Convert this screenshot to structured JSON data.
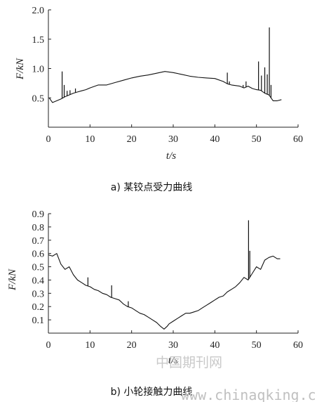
{
  "chart_data": [
    {
      "type": "line",
      "caption": "a) 某铰点受力曲线",
      "xlabel": "t/s",
      "ylabel": "F/kN",
      "xlim": [
        0,
        60
      ],
      "ylim": [
        0,
        2.0
      ],
      "xticks": [
        "0",
        "10",
        "20",
        "30",
        "40",
        "50",
        "60"
      ],
      "yticks": [
        "0.5",
        "1.0",
        "1.5",
        "2.0"
      ],
      "grid": false,
      "series": [
        {
          "x": [
            0.2,
            1,
            2,
            3,
            4,
            5,
            6,
            7,
            8,
            9,
            10,
            12,
            14,
            16,
            18,
            20,
            22,
            24,
            26,
            28,
            30,
            32,
            34,
            36,
            38,
            40,
            42,
            43,
            44,
            46,
            47,
            48,
            49,
            50,
            51,
            52,
            53,
            54,
            55,
            56
          ],
          "y": [
            0.5,
            0.42,
            0.45,
            0.48,
            0.52,
            0.55,
            0.58,
            0.6,
            0.62,
            0.64,
            0.67,
            0.72,
            0.72,
            0.76,
            0.8,
            0.84,
            0.87,
            0.89,
            0.92,
            0.95,
            0.93,
            0.9,
            0.87,
            0.85,
            0.84,
            0.83,
            0.78,
            0.74,
            0.72,
            0.7,
            0.67,
            0.7,
            0.66,
            0.64,
            0.63,
            0.58,
            0.55,
            0.45,
            0.45,
            0.47
          ]
        }
      ],
      "spikes": [
        {
          "x": 3.3,
          "y": 0.95
        },
        {
          "x": 3.8,
          "y": 0.72
        },
        {
          "x": 4.5,
          "y": 0.62
        },
        {
          "x": 5.2,
          "y": 0.63
        },
        {
          "x": 6.5,
          "y": 0.66
        },
        {
          "x": 43.0,
          "y": 0.93
        },
        {
          "x": 43.5,
          "y": 0.78
        },
        {
          "x": 46.8,
          "y": 0.72
        },
        {
          "x": 47.5,
          "y": 0.78
        },
        {
          "x": 50.5,
          "y": 1.12
        },
        {
          "x": 51.2,
          "y": 0.88
        },
        {
          "x": 52.0,
          "y": 1.02
        },
        {
          "x": 52.6,
          "y": 0.9
        },
        {
          "x": 53.1,
          "y": 1.7
        },
        {
          "x": 53.5,
          "y": 0.72
        }
      ]
    },
    {
      "type": "line",
      "caption": "b) 小轮接触力曲线",
      "xlabel": "t/s",
      "ylabel": "F/kN",
      "xlim": [
        0,
        60
      ],
      "ylim": [
        0,
        0.9
      ],
      "xticks": [
        "0",
        "10",
        "20",
        "30",
        "40",
        "50",
        "60"
      ],
      "yticks": [
        "0.1",
        "0.2",
        "0.3",
        "0.4",
        "0.5",
        "0.6",
        "0.7",
        "0.8",
        "0.9"
      ],
      "grid": false,
      "series": [
        {
          "x": [
            0,
            1,
            2,
            3,
            4,
            5,
            6,
            7,
            8,
            9,
            10,
            11,
            12,
            13,
            14,
            15,
            16,
            17,
            18,
            19,
            20,
            21,
            22,
            23,
            24,
            25,
            26,
            27,
            27.8,
            28.5,
            29,
            30,
            31,
            32,
            33,
            34,
            35,
            36,
            37,
            38,
            39,
            40,
            41,
            42,
            43,
            44,
            45,
            46,
            47,
            48,
            49,
            50,
            51,
            52,
            53,
            54,
            55,
            55.7
          ],
          "y": [
            0.59,
            0.58,
            0.6,
            0.52,
            0.48,
            0.5,
            0.44,
            0.4,
            0.38,
            0.36,
            0.35,
            0.33,
            0.32,
            0.3,
            0.29,
            0.27,
            0.26,
            0.25,
            0.22,
            0.2,
            0.19,
            0.17,
            0.15,
            0.14,
            0.12,
            0.1,
            0.08,
            0.05,
            0.03,
            0.05,
            0.07,
            0.09,
            0.11,
            0.13,
            0.15,
            0.15,
            0.16,
            0.17,
            0.19,
            0.21,
            0.23,
            0.25,
            0.27,
            0.28,
            0.31,
            0.33,
            0.35,
            0.38,
            0.42,
            0.4,
            0.45,
            0.5,
            0.48,
            0.55,
            0.57,
            0.58,
            0.56,
            0.56
          ]
        }
      ],
      "spikes": [
        {
          "x": 48.1,
          "y": 0.85
        },
        {
          "x": 48.4,
          "y": 0.62
        },
        {
          "x": 19.2,
          "y": 0.24
        },
        {
          "x": 15.2,
          "y": 0.36
        },
        {
          "x": 9.5,
          "y": 0.42
        }
      ]
    }
  ],
  "watermark": {
    "cn": "中国期刊网",
    "url": "www.chinaqking.com"
  }
}
